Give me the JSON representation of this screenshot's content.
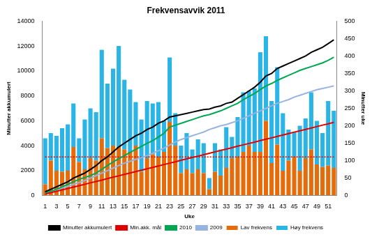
{
  "chart_data": {
    "type": "bar",
    "title": "Frekvensavvik 2011",
    "x_label": "Uke",
    "y_label": "Minutter akkumulert",
    "y2_label": "Minutter uke",
    "categories": [
      1,
      null,
      3,
      null,
      5,
      null,
      7,
      null,
      9,
      null,
      11,
      null,
      13,
      null,
      15,
      null,
      17,
      null,
      19,
      null,
      21,
      null,
      23,
      null,
      25,
      null,
      27,
      null,
      29,
      null,
      31,
      null,
      33,
      null,
      35,
      null,
      37,
      null,
      39,
      null,
      41,
      null,
      43,
      null,
      45,
      null,
      47,
      null,
      49,
      null,
      51,
      null
    ],
    "ylim": [
      0,
      14000
    ],
    "yticks": [
      0,
      2000,
      4000,
      6000,
      8000,
      10000,
      12000,
      14000
    ],
    "y2lim": [
      0,
      500
    ],
    "y2ticks": [
      0,
      50,
      100,
      150,
      200,
      250,
      300,
      350,
      400,
      450,
      500
    ],
    "stacked": true,
    "grid": false,
    "legend": "bottom",
    "series": [
      {
        "name": "Lav frekvens",
        "type": "bar",
        "axis": "y2",
        "color": "#e46c0a",
        "values": [
          32,
          100,
          71,
          68,
          71,
          139,
          96,
          75,
          107,
          100,
          164,
          136,
          143,
          139,
          132,
          125,
          143,
          68,
          107,
          118,
          111,
          125,
          211,
          143,
          64,
          75,
          64,
          75,
          64,
          18,
          68,
          57,
          79,
          107,
          111,
          125,
          143,
          125,
          125,
          214,
          93,
          146,
          71,
          100,
          111,
          71,
          107,
          132,
          89,
          82,
          86,
          79
        ]
      },
      {
        "name": "Høy frekvens",
        "type": "bar",
        "axis": "y2",
        "color": "#2bb4e6",
        "values": [
          132,
          79,
          100,
          125,
          133,
          125,
          68,
          143,
          143,
          139,
          254,
          185,
          221,
          290,
          200,
          179,
          125,
          150,
          164,
          146,
          157,
          89,
          185,
          93,
          79,
          104,
          68,
          86,
          86,
          32,
          82,
          75,
          117,
          61,
          114,
          171,
          157,
          182,
          286,
          243,
          178,
          222,
          165,
          89,
          71,
          129,
          114,
          164,
          125,
          97,
          185,
          164
        ]
      },
      {
        "name": "Minutter akkumulert",
        "type": "line",
        "color": "#000000",
        "line_style": "solid",
        "values": [
          300,
          500,
          700,
          900,
          1100,
          1400,
          1600,
          1800,
          2100,
          2400,
          2800,
          3100,
          3500,
          3900,
          4200,
          4500,
          4800,
          5000,
          5300,
          5500,
          5800,
          6000,
          6300,
          6400,
          6500,
          6600,
          6700,
          6800,
          6900,
          6950,
          7100,
          7200,
          7400,
          7500,
          7800,
          8100,
          8400,
          8700,
          9100,
          9600,
          9800,
          10200,
          10400,
          10600,
          10800,
          11000,
          11200,
          11500,
          11700,
          11900,
          12200,
          12500
        ]
      },
      {
        "name": "Min.akk. mål",
        "type": "line",
        "color": "#e00000",
        "line_style": "solid",
        "values": [
          110,
          230,
          340,
          450,
          570,
          680,
          790,
          900,
          1020,
          1130,
          1240,
          1360,
          1470,
          1580,
          1700,
          1810,
          1920,
          2030,
          2150,
          2260,
          2370,
          2490,
          2600,
          2710,
          2830,
          2940,
          3050,
          3160,
          3280,
          3390,
          3500,
          3620,
          3730,
          3840,
          3960,
          4070,
          4180,
          4290,
          4410,
          4520,
          4630,
          4750,
          4860,
          4970,
          5090,
          5200,
          5310,
          5420,
          5540,
          5650,
          5760,
          5880
        ]
      },
      {
        "name": "2010",
        "type": "line",
        "color": "#00a651",
        "line_style": "solid",
        "values": [
          200,
          350,
          500,
          700,
          900,
          1100,
          1300,
          1450,
          1600,
          1800,
          2100,
          2400,
          2700,
          2950,
          3200,
          3450,
          3700,
          3950,
          4200,
          4400,
          4700,
          5000,
          5500,
          5650,
          5800,
          5950,
          6100,
          6250,
          6400,
          6500,
          6650,
          6800,
          7000,
          7200,
          7400,
          7700,
          7950,
          8200,
          8500,
          8800,
          9000,
          9250,
          9450,
          9650,
          9850,
          10050,
          10200,
          10350,
          10500,
          10650,
          10850,
          11100
        ]
      },
      {
        "name": "2009",
        "type": "line",
        "color": "#97b3e0",
        "line_style": "solid",
        "values": [
          150,
          300,
          450,
          600,
          750,
          900,
          1050,
          1200,
          1400,
          1600,
          1800,
          2000,
          2200,
          2400,
          2600,
          2750,
          2900,
          3050,
          3200,
          3400,
          3600,
          3800,
          4050,
          4300,
          4500,
          4650,
          4800,
          4950,
          5100,
          5300,
          5450,
          5600,
          5700,
          5850,
          6000,
          6200,
          6400,
          6600,
          6800,
          7000,
          7200,
          7400,
          7550,
          7700,
          7900,
          8050,
          8200,
          8350,
          8500,
          8600,
          8700,
          8800
        ]
      },
      {
        "type": "line",
        "color": "#e00000",
        "line_style": "dotted",
        "values": [
          3100,
          3100,
          3100,
          3100,
          3100,
          3100,
          3100,
          3100,
          3100,
          3100,
          3100,
          3100,
          3100,
          3100,
          3100,
          3100,
          3100,
          3100,
          3100,
          3100,
          3100,
          3100,
          3100,
          3100,
          3100,
          3100,
          3100,
          3100,
          3100,
          3100,
          3100,
          3100,
          3100,
          3100,
          3100,
          3100,
          3100,
          3100,
          3100,
          3100,
          3100,
          3100,
          3100,
          3100,
          3100,
          3100,
          3100,
          3100,
          3100,
          3100,
          3100,
          3100
        ]
      }
    ]
  }
}
